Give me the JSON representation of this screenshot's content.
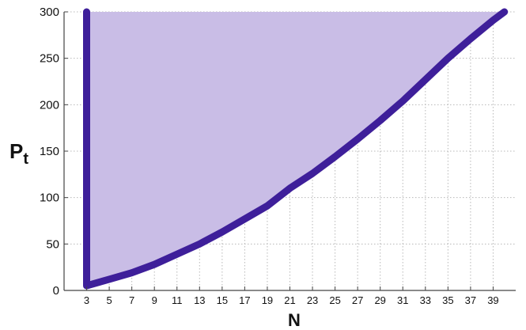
{
  "chart_data": {
    "type": "area",
    "title": "",
    "xlabel": "N",
    "ylabel_main": "P",
    "ylabel_sub": "t",
    "xlim": [
      1,
      41
    ],
    "ylim": [
      0,
      300
    ],
    "xticks": [
      3,
      5,
      7,
      9,
      11,
      13,
      15,
      17,
      19,
      21,
      23,
      25,
      27,
      29,
      31,
      33,
      35,
      37,
      39
    ],
    "yticks": [
      0,
      50,
      100,
      150,
      200,
      250,
      300
    ],
    "grid": true,
    "fill_color": "#c9bde6",
    "line_color": "#3e1f9a",
    "series": [
      {
        "x": [
          3,
          3,
          5,
          7,
          9,
          11,
          13,
          15,
          17,
          19,
          21,
          23,
          25,
          27,
          29,
          31,
          33,
          35,
          37,
          39,
          40
        ],
        "y": [
          300,
          5,
          12,
          19,
          28,
          39,
          50,
          63,
          77,
          91,
          110,
          126,
          144,
          163,
          183,
          204,
          227,
          250,
          271,
          291,
          300
        ]
      }
    ]
  }
}
